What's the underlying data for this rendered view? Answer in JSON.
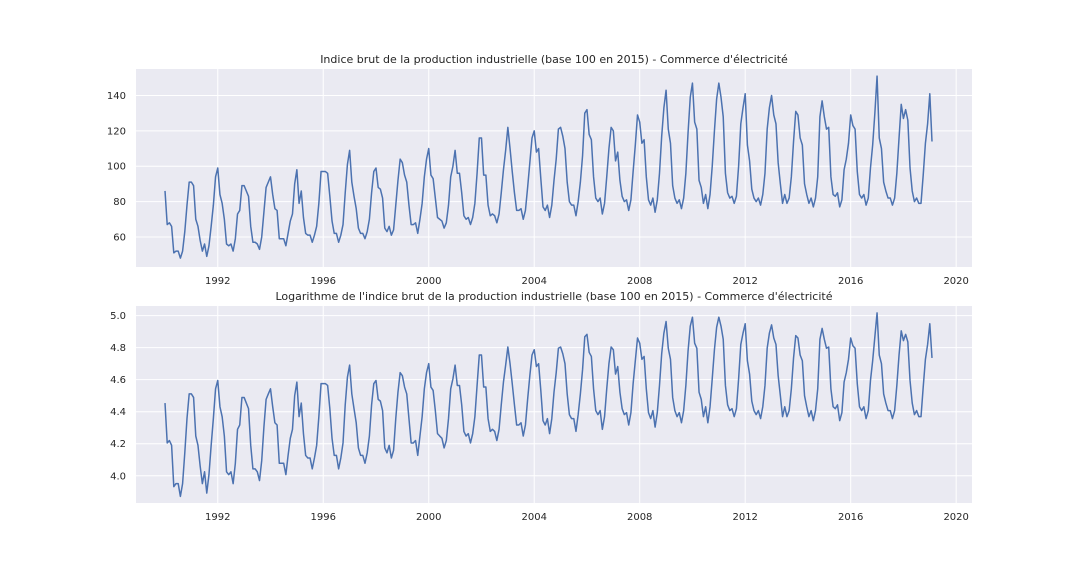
{
  "chart_data": [
    {
      "type": "line",
      "title": "Indice brut de la production industrielle (base 100 en 2015) - Commerce d'électricité",
      "xlabel": "",
      "ylabel": "",
      "xlim": [
        1988.9,
        2020.6
      ],
      "ylim": [
        43,
        155
      ],
      "x_ticks": [
        1992,
        1996,
        2000,
        2004,
        2008,
        2012,
        2016,
        2020
      ],
      "y_ticks": [
        60,
        80,
        100,
        120,
        140
      ],
      "grid": true,
      "series": [
        {
          "color": "#4c72b0",
          "x_start": 1990.0,
          "x_step_months": 1,
          "values": [
            86,
            67,
            68,
            66,
            51,
            52,
            52,
            48,
            52,
            63,
            78,
            91,
            91,
            89,
            70,
            66,
            58,
            52,
            56,
            49,
            55,
            66,
            78,
            94,
            99,
            84,
            79,
            70,
            56,
            55,
            56,
            52,
            59,
            73,
            75,
            89,
            89,
            86,
            83,
            66,
            57,
            57,
            56,
            53,
            60,
            74,
            88,
            91,
            94,
            84,
            76,
            75,
            59,
            59,
            59,
            55,
            62,
            69,
            73,
            90,
            98,
            79,
            86,
            71,
            62,
            61,
            61,
            57,
            61,
            66,
            79,
            97,
            97,
            97,
            96,
            83,
            69,
            62,
            62,
            57,
            61,
            67,
            85,
            101,
            109,
            91,
            83,
            76,
            65,
            62,
            62,
            59,
            63,
            70,
            85,
            97,
            99,
            88,
            87,
            82,
            65,
            63,
            66,
            61,
            64,
            78,
            92,
            104,
            102,
            95,
            91,
            78,
            67,
            67,
            68,
            62,
            70,
            79,
            94,
            104,
            110,
            95,
            93,
            82,
            71,
            70,
            69,
            65,
            68,
            78,
            94,
            100,
            109,
            96,
            96,
            85,
            72,
            70,
            71,
            67,
            71,
            79,
            96,
            116,
            116,
            95,
            95,
            78,
            72,
            73,
            72,
            68,
            73,
            85,
            98,
            109,
            122,
            110,
            97,
            85,
            75,
            75,
            76,
            70,
            75,
            88,
            102,
            116,
            120,
            108,
            110,
            93,
            77,
            75,
            78,
            71,
            78,
            92,
            104,
            121,
            122,
            117,
            110,
            91,
            80,
            78,
            78,
            72,
            80,
            91,
            106,
            130,
            132,
            118,
            115,
            94,
            82,
            80,
            82,
            73,
            79,
            94,
            110,
            122,
            120,
            103,
            108,
            92,
            83,
            80,
            81,
            75,
            81,
            97,
            112,
            129,
            125,
            113,
            115,
            94,
            81,
            78,
            82,
            74,
            81,
            96,
            117,
            133,
            143,
            121,
            113,
            89,
            82,
            79,
            81,
            76,
            82,
            96,
            119,
            139,
            147,
            125,
            121,
            92,
            88,
            79,
            84,
            76,
            84,
            100,
            120,
            138,
            147,
            139,
            128,
            96,
            85,
            82,
            83,
            79,
            83,
            100,
            124,
            133,
            141,
            112,
            103,
            87,
            82,
            80,
            82,
            78,
            84,
            96,
            121,
            133,
            140,
            129,
            124,
            102,
            90,
            79,
            84,
            79,
            82,
            94,
            114,
            131,
            129,
            116,
            112,
            90,
            84,
            79,
            82,
            77,
            82,
            94,
            128,
            137,
            128,
            121,
            122,
            94,
            84,
            83,
            85,
            77,
            81,
            98,
            104,
            113,
            129,
            123,
            121,
            97,
            84,
            82,
            84,
            78,
            82,
            99,
            112,
            130,
            151,
            116,
            110,
            91,
            86,
            82,
            82,
            78,
            82,
            96,
            116,
            135,
            127,
            132,
            126,
            99,
            86,
            80,
            82,
            79,
            79,
            95,
            113,
            124,
            141,
            114
          ]
        }
      ]
    },
    {
      "type": "line",
      "title": "Logarithme de l'indice brut de la production industrielle (base 100 en 2015) - Commerce d'électricité",
      "xlabel": "",
      "ylabel": "",
      "xlim": [
        1988.9,
        2020.6
      ],
      "ylim": [
        3.83,
        5.06
      ],
      "x_ticks": [
        1992,
        1996,
        2000,
        2004,
        2008,
        2012,
        2016,
        2020
      ],
      "y_ticks": [
        4.0,
        4.2,
        4.4,
        4.6,
        4.8,
        5.0
      ],
      "y_tick_labels": [
        "4.0",
        "4.2",
        "4.4",
        "4.6",
        "4.8",
        "5.0"
      ],
      "grid": true,
      "series": [
        {
          "color": "#4c72b0",
          "x_start": 1990.0,
          "x_step_months": 1,
          "values": [
            4.454,
            4.205,
            4.22,
            4.19,
            3.932,
            3.951,
            3.951,
            3.871,
            3.951,
            4.143,
            4.357,
            4.511,
            4.511,
            4.489,
            4.248,
            4.19,
            4.06,
            3.951,
            4.025,
            3.892,
            4.007,
            4.19,
            4.357,
            4.543,
            4.595,
            4.431,
            4.369,
            4.248,
            4.025,
            4.007,
            4.025,
            3.951,
            4.078,
            4.29,
            4.317,
            4.489,
            4.489,
            4.454,
            4.419,
            4.19,
            4.043,
            4.043,
            4.025,
            3.97,
            4.094,
            4.304,
            4.477,
            4.511,
            4.543,
            4.431,
            4.331,
            4.317,
            4.078,
            4.078,
            4.078,
            4.007,
            4.127,
            4.234,
            4.29,
            4.5,
            4.585,
            4.369,
            4.454,
            4.263,
            4.127,
            4.111,
            4.111,
            4.043,
            4.111,
            4.19,
            4.369,
            4.575,
            4.575,
            4.575,
            4.564,
            4.419,
            4.234,
            4.127,
            4.127,
            4.043,
            4.111,
            4.205,
            4.443,
            4.615,
            4.691,
            4.511,
            4.419,
            4.331,
            4.174,
            4.127,
            4.127,
            4.078,
            4.143,
            4.248,
            4.443,
            4.575,
            4.595,
            4.477,
            4.466,
            4.407,
            4.174,
            4.143,
            4.19,
            4.111,
            4.159,
            4.357,
            4.522,
            4.644,
            4.625,
            4.554,
            4.511,
            4.357,
            4.205,
            4.205,
            4.22,
            4.127,
            4.248,
            4.369,
            4.543,
            4.644,
            4.7,
            4.554,
            4.533,
            4.407,
            4.263,
            4.248,
            4.234,
            4.174,
            4.22,
            4.357,
            4.543,
            4.605,
            4.691,
            4.564,
            4.564,
            4.443,
            4.277,
            4.248,
            4.263,
            4.205,
            4.263,
            4.369,
            4.564,
            4.754,
            4.754,
            4.554,
            4.554,
            4.357,
            4.277,
            4.29,
            4.277,
            4.22,
            4.29,
            4.443,
            4.585,
            4.691,
            4.804,
            4.7,
            4.575,
            4.443,
            4.317,
            4.317,
            4.331,
            4.248,
            4.317,
            4.477,
            4.625,
            4.754,
            4.787,
            4.682,
            4.7,
            4.533,
            4.344,
            4.317,
            4.357,
            4.263,
            4.357,
            4.522,
            4.644,
            4.796,
            4.804,
            4.762,
            4.7,
            4.511,
            4.382,
            4.357,
            4.357,
            4.277,
            4.382,
            4.511,
            4.663,
            4.868,
            4.883,
            4.771,
            4.745,
            4.543,
            4.407,
            4.382,
            4.407,
            4.29,
            4.369,
            4.543,
            4.7,
            4.804,
            4.787,
            4.635,
            4.682,
            4.522,
            4.419,
            4.382,
            4.394,
            4.317,
            4.394,
            4.575,
            4.718,
            4.86,
            4.828,
            4.727,
            4.745,
            4.543,
            4.394,
            4.357,
            4.407,
            4.304,
            4.394,
            4.564,
            4.762,
            4.89,
            4.963,
            4.796,
            4.727,
            4.489,
            4.407,
            4.369,
            4.394,
            4.331,
            4.407,
            4.564,
            4.779,
            4.934,
            4.99,
            4.828,
            4.796,
            4.522,
            4.477,
            4.369,
            4.431,
            4.331,
            4.431,
            4.605,
            4.787,
            4.927,
            4.99,
            4.934,
            4.852,
            4.564,
            4.443,
            4.407,
            4.419,
            4.369,
            4.419,
            4.605,
            4.82,
            4.89,
            4.949,
            4.718,
            4.635,
            4.466,
            4.407,
            4.382,
            4.407,
            4.357,
            4.431,
            4.564,
            4.796,
            4.89,
            4.942,
            4.86,
            4.82,
            4.625,
            4.5,
            4.369,
            4.431,
            4.369,
            4.407,
            4.543,
            4.736,
            4.875,
            4.86,
            4.754,
            4.718,
            4.5,
            4.431,
            4.369,
            4.407,
            4.344,
            4.407,
            4.543,
            4.852,
            4.92,
            4.852,
            4.796,
            4.804,
            4.543,
            4.431,
            4.419,
            4.443,
            4.344,
            4.394,
            4.585,
            4.644,
            4.727,
            4.86,
            4.812,
            4.796,
            4.575,
            4.431,
            4.407,
            4.431,
            4.357,
            4.407,
            4.595,
            4.718,
            4.868,
            5.017,
            4.754,
            4.7,
            4.511,
            4.454,
            4.407,
            4.407,
            4.357,
            4.407,
            4.564,
            4.754,
            4.905,
            4.844,
            4.883,
            4.836,
            4.595,
            4.454,
            4.382,
            4.407,
            4.369,
            4.369,
            4.554,
            4.727,
            4.82,
            4.949,
            4.736
          ]
        }
      ]
    }
  ]
}
